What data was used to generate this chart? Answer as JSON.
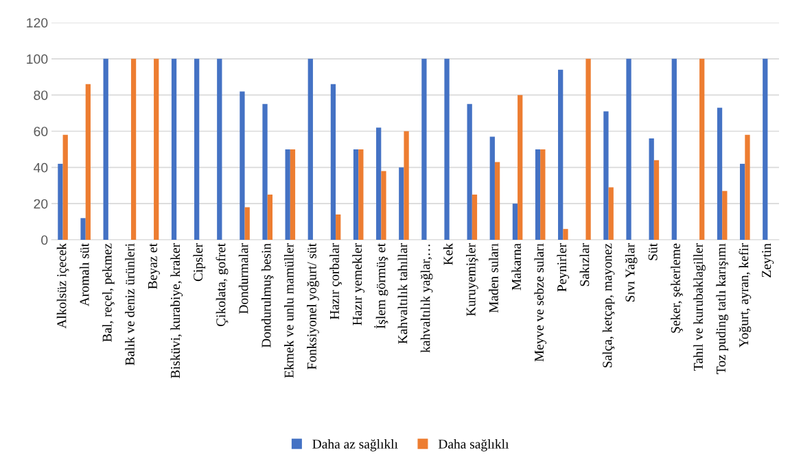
{
  "chart_data": {
    "type": "bar",
    "categories": [
      "Alkolsüz içecek",
      "Aromalı süt",
      "Bal, reçel, pekmez",
      "Balık ve deniz ürünleri",
      "Beyaz et",
      "Bisküvi, kurabiye, kraker",
      "Cipsler",
      "Çikolata, gofret",
      "Dondurmalar",
      "Dondurulmuş besin",
      "Ekmek ve unlu mamüller",
      "Fonksiyonel yoğurt/ süt",
      "Hazır çorbalar",
      "Hazır yemekler",
      "İşlem görmüş et",
      "Kahvaltılık tahıllar",
      "kahvaltılık yağlar,…",
      "Kek",
      "Kuruyemişler",
      "Maden suları",
      "Makarna",
      "Meyve ve sebze suları",
      "Peynirler",
      "Sakızlar",
      "Salça, ketçap, mayonez",
      "Sıvı Yağlar",
      "Süt",
      "Şeker, şekerleme",
      "Tahıl ve kurubaklagiller",
      "Toz puding tatlı karışımı",
      "Yoğurt, ayran, kefir",
      "Zeytin"
    ],
    "series": [
      {
        "name": "Daha az sağlıklı",
        "color": "#4472c4",
        "values": [
          42,
          12,
          100,
          0,
          0,
          100,
          100,
          100,
          82,
          75,
          50,
          100,
          86,
          50,
          62,
          40,
          100,
          100,
          75,
          57,
          20,
          50,
          94,
          0,
          71,
          100,
          56,
          100,
          0,
          73,
          42,
          100
        ]
      },
      {
        "name": "Daha sağlıklı",
        "color": "#ed7d31",
        "values": [
          58,
          86,
          0,
          100,
          100,
          0,
          0,
          0,
          18,
          25,
          50,
          0,
          14,
          50,
          38,
          60,
          0,
          0,
          25,
          43,
          80,
          50,
          6,
          100,
          29,
          0,
          44,
          0,
          100,
          27,
          58,
          0
        ]
      }
    ],
    "ylim": [
      0,
      120
    ],
    "yticks": [
      0,
      20,
      40,
      60,
      80,
      100,
      120
    ],
    "grid": "y",
    "legend": "bottom"
  }
}
